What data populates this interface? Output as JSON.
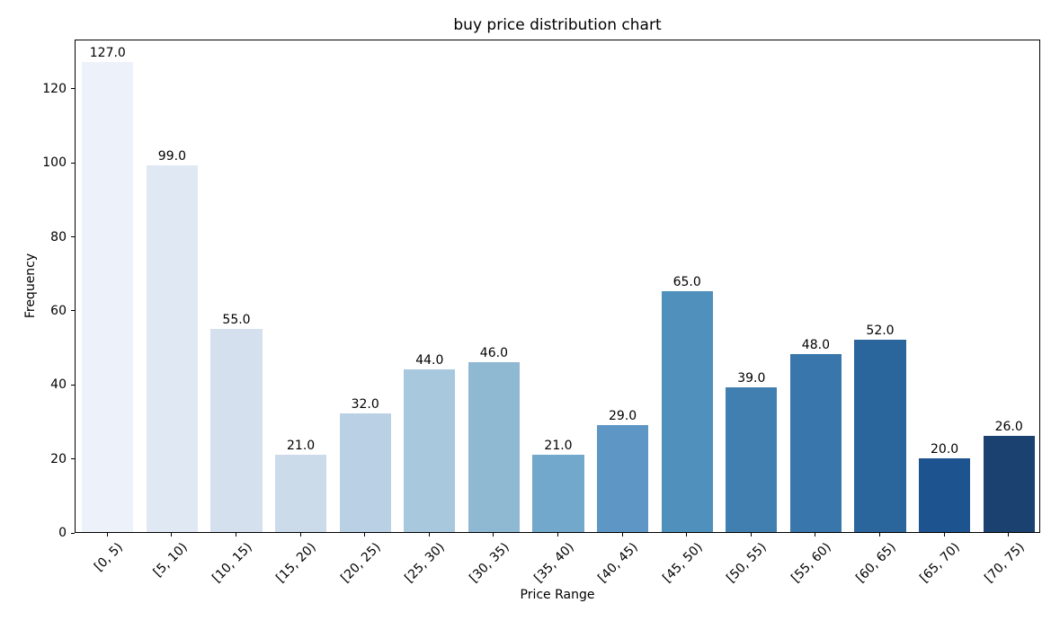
{
  "chart_data": {
    "type": "bar",
    "title": "buy price distribution chart",
    "xlabel": "Price Range",
    "ylabel": "Frequency",
    "categories": [
      "[0, 5)",
      "[5, 10)",
      "[10, 15)",
      "[15, 20)",
      "[20, 25)",
      "[25, 30)",
      "[30, 35)",
      "[35, 40)",
      "[40, 45)",
      "[45, 50)",
      "[50, 55)",
      "[55, 60)",
      "[60, 65)",
      "[65, 70)",
      "[70, 75)"
    ],
    "values": [
      127,
      99,
      55,
      21,
      32,
      44,
      46,
      21,
      29,
      65,
      39,
      48,
      52,
      20,
      26
    ],
    "bar_labels": [
      "127.0",
      "99.0",
      "55.0",
      "21.0",
      "32.0",
      "44.0",
      "46.0",
      "21.0",
      "29.0",
      "65.0",
      "39.0",
      "48.0",
      "52.0",
      "20.0",
      "26.0"
    ],
    "bar_colors": [
      "#edf2fa",
      "#e0e9f3",
      "#d5e0ee",
      "#cbdbea",
      "#bad1e5",
      "#a7c8dd",
      "#8fb8d3",
      "#73a8cd",
      "#5e96c5",
      "#5090bd",
      "#417fb0",
      "#3876ab",
      "#2a659c",
      "#1d5490",
      "#1a4170"
    ],
    "yticks": [
      0,
      20,
      40,
      60,
      80,
      100,
      120
    ],
    "ylim": [
      0,
      133.35
    ],
    "xtick_rotation_deg": 45,
    "grid": false,
    "legend_position": "none",
    "background_color": "#ffffff",
    "axis_color": "#000000",
    "text_color": "#000000"
  }
}
